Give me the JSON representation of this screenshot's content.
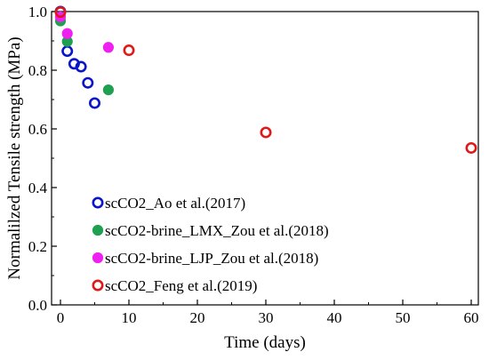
{
  "chart_data": {
    "type": "scatter",
    "xlabel": "Time (days)",
    "ylabel": "Normalilzed Tensile strength (MPa)",
    "xlim": [
      0,
      60
    ],
    "ylim": [
      0,
      1.0
    ],
    "xticks": [
      "0",
      "10",
      "20",
      "30",
      "40",
      "50",
      "60"
    ],
    "yticks": [
      "0.0",
      "0.2",
      "0.4",
      "0.6",
      "0.8",
      "1.0"
    ],
    "grid": false,
    "legend_position": "lower-left",
    "series": [
      {
        "name": "scCO2_Ao et al.(2017)",
        "marker": "open-circle",
        "color": "#0a14c8",
        "points": [
          [
            0,
            1.0
          ],
          [
            1,
            0.865
          ],
          [
            2,
            0.822
          ],
          [
            3,
            0.812
          ],
          [
            4,
            0.757
          ],
          [
            5,
            0.688
          ]
        ]
      },
      {
        "name": "scCO2-brine_LMX_Zou et al.(2018)",
        "marker": "filled-circle",
        "color": "#1ea050",
        "points": [
          [
            0,
            0.968
          ],
          [
            1,
            0.898
          ],
          [
            7,
            0.733
          ]
        ]
      },
      {
        "name": "scCO2-brine_LJP_Zou et al.(2018)",
        "marker": "filled-circle",
        "color": "#f020f0",
        "points": [
          [
            0,
            0.982
          ],
          [
            1,
            0.925
          ],
          [
            7,
            0.878
          ]
        ]
      },
      {
        "name": "scCO2_Feng et al.(2019)",
        "marker": "open-circle",
        "color": "#e01818",
        "points": [
          [
            0,
            0.998
          ],
          [
            10,
            0.868
          ],
          [
            30,
            0.588
          ],
          [
            60,
            0.535
          ]
        ]
      }
    ]
  }
}
